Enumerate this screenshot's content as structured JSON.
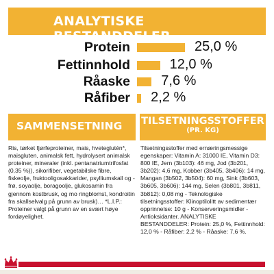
{
  "header": {
    "title": "ANALYTISKE BESTANDDELER"
  },
  "nutrients": [
    {
      "label": "Protein",
      "value": "25,0 %",
      "percent": 25.0
    },
    {
      "label": "Fettinnhold",
      "value": "12,0 %",
      "percent": 12.0
    },
    {
      "label": "Råaske",
      "value": "7,6 %",
      "percent": 7.6
    },
    {
      "label": "Råfiber",
      "value": "2,2 %",
      "percent": 2.2
    }
  ],
  "composition": {
    "title": "SAMMENSETNING",
    "text": "Ris, tørket fjørfeproteiner, mais, hveteglutén*, maisgluten, animalsk fett, hydrolysert animalsk proteiner, mineraler (inkl. pentanatriumtrifosfat (0,35 %)), sikorifiber, vegetabilske fibre, fiskeolje, fruktooligosakkarider, psylliumskall og -frø, soyaolje, boragoolje, glukosamin fra gjennom kostbrusk, og mo ringblomst, kondroitin fra skallselvalg på grunn av brusk)… *L.I.P.: Proteiner valgt på grunn av en svært høye fordøyelighet."
  },
  "additives": {
    "title": "TILSETNINGSSTOFFER",
    "subtitle": "(pr. kg)",
    "text": "Tilsetningsstoffer med ernæringsmessige egenskaper: Vitamin A: 31000 IE, Vitamin D3: 800 IE, Jern (3b103): 46 mg, Jod (3b201, 3b202): 4,6 mg, Kobber (3b405, 3b406): 14 mg, Mangan (3b502, 3b504): 60 mg, Sink (3b603, 3b605, 3b606): 144 mg, Selen (3b801, 3b811, 3b812): 0,08 mg - Teknologiske tilsetningsstoffer: Klinoptilolitt av sedimentær opprinnelse: 10 g - Konserveringsmidler - Antioksidanter. ANALYTISKE BESTANDDELER: Protein: 25,0 %, Fettinnhold: 12,0 % - Råfiber: 2,2 % - Råaske: 7,6 %."
  },
  "colors": {
    "accent": "#f2b233",
    "brand_red": "#c8102e"
  },
  "logo": {
    "icon": "crown-icon"
  }
}
